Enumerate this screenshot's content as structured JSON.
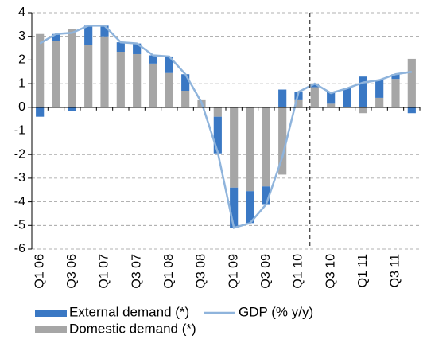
{
  "chart_data": {
    "type": "bar",
    "categories": [
      "Q1 06",
      null,
      "Q3 06",
      null,
      "Q1 07",
      null,
      "Q3 07",
      null,
      "Q1 08",
      null,
      "Q3 08",
      null,
      "Q1 09",
      null,
      "Q3 09",
      null,
      "Q1 10",
      null,
      "Q3 10",
      null,
      "Q1 11",
      null,
      "Q3 11",
      null
    ],
    "series": [
      {
        "name": "Domestic demand (*)",
        "color": "#a6a6a6",
        "values": [
          3.1,
          2.8,
          3.3,
          2.65,
          3.0,
          2.35,
          2.25,
          1.85,
          1.45,
          0.7,
          0.3,
          -0.4,
          -3.4,
          -3.55,
          -3.35,
          -2.85,
          0.3,
          0.85,
          0.15,
          0.0,
          -0.25,
          0.4,
          1.2,
          2.05
        ]
      },
      {
        "name": "External demand (*)",
        "color": "#3a78c4",
        "values": [
          -0.4,
          0.3,
          -0.15,
          0.8,
          0.45,
          0.4,
          0.45,
          0.35,
          0.7,
          0.7,
          0.0,
          -1.55,
          -1.7,
          -1.35,
          -0.75,
          0.75,
          0.35,
          0.15,
          0.5,
          0.8,
          1.3,
          0.75,
          0.2,
          -0.25
        ]
      },
      {
        "name": "GDP (% y/y)",
        "type": "line",
        "color": "#8fb4dc",
        "values": [
          2.7,
          3.1,
          3.15,
          3.45,
          3.45,
          2.75,
          2.7,
          2.2,
          2.15,
          1.4,
          0.2,
          -1.9,
          -5.1,
          -4.9,
          -4.1,
          -2.1,
          0.65,
          1.0,
          0.6,
          0.8,
          1.05,
          1.15,
          1.4,
          1.5
        ]
      }
    ],
    "ylim": [
      -6,
      4
    ],
    "yticks": [
      -6,
      -5,
      -4,
      -3,
      -2,
      -1,
      0,
      1,
      2,
      3,
      4
    ],
    "grid": true
  }
}
